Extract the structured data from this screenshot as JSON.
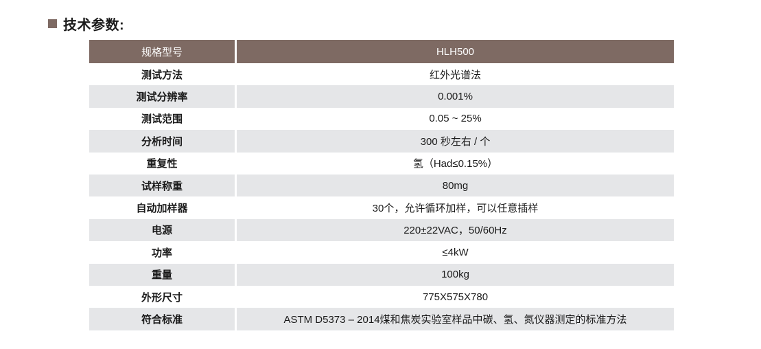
{
  "page": {
    "title": "技术参数:"
  },
  "table": {
    "header": {
      "label": "规格型号",
      "value": "HLH500"
    },
    "rows": [
      {
        "label": "测试方法",
        "value": "红外光谱法"
      },
      {
        "label": "测试分辨率",
        "value": "0.001%"
      },
      {
        "label": "测试范围",
        "value": "0.05 ~ 25%"
      },
      {
        "label": "分析时间",
        "value": "300 秒左右 / 个"
      },
      {
        "label": "重复性",
        "value": "氢（Had≤0.15%）"
      },
      {
        "label": "试样称重",
        "value": "80mg"
      },
      {
        "label": "自动加样器",
        "value": "30个，允许循环加样，可以任意插样"
      },
      {
        "label": "电源",
        "value": "220±22VAC，50/60Hz"
      },
      {
        "label": "功率",
        "value": "≤4kW"
      },
      {
        "label": "重量",
        "value": "100kg"
      },
      {
        "label": "外形尺寸",
        "value": "775X575X780"
      },
      {
        "label": "符合标准",
        "value": "ASTM D5373 – 2014煤和焦炭实验室样品中碳、氢、氮仪器测定的标准方法"
      }
    ],
    "colors": {
      "header_bg": "#7e6a63",
      "header_text": "#ffffff",
      "row_alt_bg": "#e5e6e8",
      "row_bg": "#ffffff",
      "bullet": "#7e6a63",
      "text": "#1a1a1a"
    }
  }
}
